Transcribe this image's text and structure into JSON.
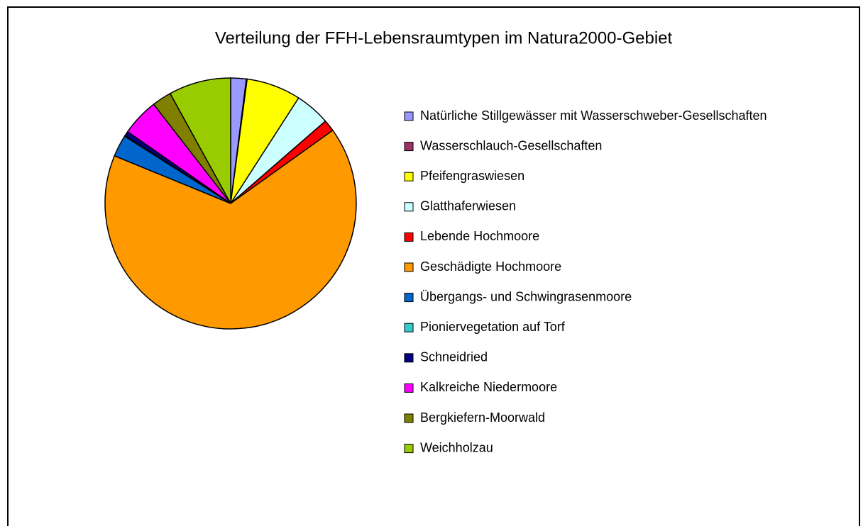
{
  "chart_data": {
    "type": "pie",
    "title": "Verteilung der FFH-Lebensraumtypen im Natura2000-Gebiet",
    "categories": [
      "Natürliche Stillgewässer mit Wasserschweber-Gesellschaften",
      "Wasserschlauch-Gesellschaften",
      "Pfeifengraswiesen",
      "Glatthaferwiesen",
      "Lebende Hochmoore",
      "Geschädigte Hochmoore",
      "Übergangs- und Schwingrasenmoore",
      "Pioniervegetation auf Torf",
      "Schneidried",
      "Kalkreiche Niedermoore",
      "Bergkiefern-Moorwald",
      "Weichholzau"
    ],
    "values": [
      2,
      0.1,
      7,
      4.5,
      1.5,
      66.1,
      2.8,
      0.1,
      0.6,
      4.8,
      2.5,
      8
    ],
    "colors": [
      "#9999FF",
      "#993366",
      "#FFFF00",
      "#CCFFFF",
      "#FF0000",
      "#FF9900",
      "#0066CC",
      "#33CCCC",
      "#000080",
      "#FF00FF",
      "#808000",
      "#99CC00"
    ],
    "legend": "right"
  }
}
